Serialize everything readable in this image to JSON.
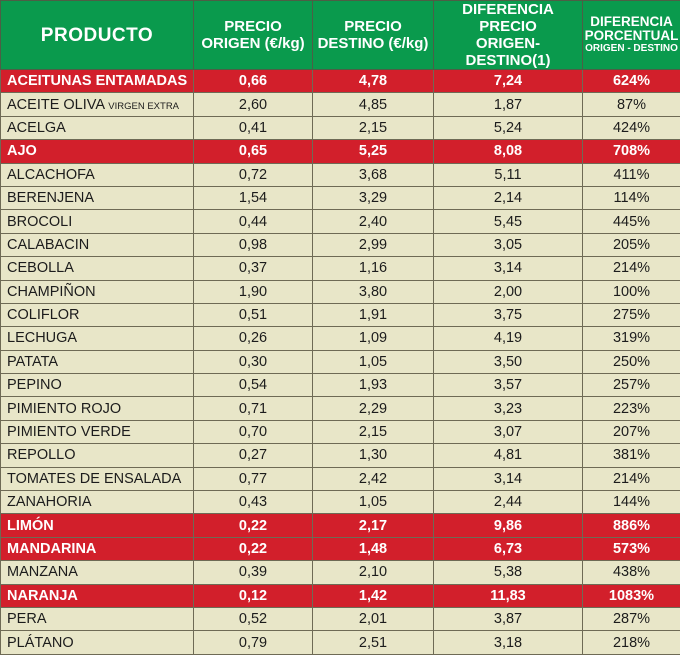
{
  "colors": {
    "header_bg": "#0a9a4d",
    "header_text": "#ffffff",
    "row_bg": "#e8e6c8",
    "highlight_bg": "#d21f2b",
    "highlight_text": "#ffffff",
    "border": "#6e6a55"
  },
  "table": {
    "headers": {
      "producto": "PRODUCTO",
      "precio_origen_l1": "PRECIO",
      "precio_origen_l2": "ORIGEN (€/kg)",
      "precio_destino_l1": "PRECIO",
      "precio_destino_l2": "DESTINO (€/kg)",
      "diferencia_l1": "DIFERENCIA PRECIO",
      "diferencia_l2": "ORIGEN-DESTINO(1)",
      "porcentual_l1": "DIFERENCIA",
      "porcentual_l2": "PORCENTUAL",
      "porcentual_l3": "ORIGEN - DESTINO"
    },
    "rows": [
      {
        "producto": "ACEITUNAS ENTAMADAS",
        "producto_extra": "",
        "origen": "0,66",
        "destino": "4,78",
        "diferencia": "7,24",
        "porcentaje": "624%",
        "highlight": true
      },
      {
        "producto": "ACEITE OLIVA ",
        "producto_extra": "VIRGEN EXTRA",
        "origen": "2,60",
        "destino": "4,85",
        "diferencia": "1,87",
        "porcentaje": "87%",
        "highlight": false
      },
      {
        "producto": "ACELGA",
        "producto_extra": "",
        "origen": "0,41",
        "destino": "2,15",
        "diferencia": "5,24",
        "porcentaje": "424%",
        "highlight": false
      },
      {
        "producto": "AJO",
        "producto_extra": "",
        "origen": "0,65",
        "destino": "5,25",
        "diferencia": "8,08",
        "porcentaje": "708%",
        "highlight": true
      },
      {
        "producto": "ALCACHOFA",
        "producto_extra": "",
        "origen": "0,72",
        "destino": "3,68",
        "diferencia": "5,11",
        "porcentaje": "411%",
        "highlight": false
      },
      {
        "producto": "BERENJENA",
        "producto_extra": "",
        "origen": "1,54",
        "destino": "3,29",
        "diferencia": "2,14",
        "porcentaje": "114%",
        "highlight": false
      },
      {
        "producto": "BROCOLI",
        "producto_extra": "",
        "origen": "0,44",
        "destino": "2,40",
        "diferencia": "5,45",
        "porcentaje": "445%",
        "highlight": false
      },
      {
        "producto": "CALABACIN",
        "producto_extra": "",
        "origen": "0,98",
        "destino": "2,99",
        "diferencia": "3,05",
        "porcentaje": "205%",
        "highlight": false
      },
      {
        "producto": "CEBOLLA",
        "producto_extra": "",
        "origen": "0,37",
        "destino": "1,16",
        "diferencia": "3,14",
        "porcentaje": "214%",
        "highlight": false
      },
      {
        "producto": "CHAMPIÑON",
        "producto_extra": "",
        "origen": "1,90",
        "destino": "3,80",
        "diferencia": "2,00",
        "porcentaje": "100%",
        "highlight": false
      },
      {
        "producto": "COLIFLOR",
        "producto_extra": "",
        "origen": "0,51",
        "destino": "1,91",
        "diferencia": "3,75",
        "porcentaje": "275%",
        "highlight": false
      },
      {
        "producto": "LECHUGA",
        "producto_extra": "",
        "origen": "0,26",
        "destino": "1,09",
        "diferencia": "4,19",
        "porcentaje": "319%",
        "highlight": false
      },
      {
        "producto": "PATATA",
        "producto_extra": "",
        "origen": "0,30",
        "destino": "1,05",
        "diferencia": "3,50",
        "porcentaje": "250%",
        "highlight": false
      },
      {
        "producto": "PEPINO",
        "producto_extra": "",
        "origen": "0,54",
        "destino": "1,93",
        "diferencia": "3,57",
        "porcentaje": "257%",
        "highlight": false
      },
      {
        "producto": "PIMIENTO ROJO",
        "producto_extra": "",
        "origen": "0,71",
        "destino": "2,29",
        "diferencia": "3,23",
        "porcentaje": "223%",
        "highlight": false
      },
      {
        "producto": "PIMIENTO VERDE",
        "producto_extra": "",
        "origen": "0,70",
        "destino": "2,15",
        "diferencia": "3,07",
        "porcentaje": "207%",
        "highlight": false
      },
      {
        "producto": "REPOLLO",
        "producto_extra": "",
        "origen": "0,27",
        "destino": "1,30",
        "diferencia": "4,81",
        "porcentaje": "381%",
        "highlight": false
      },
      {
        "producto": "TOMATES DE ENSALADA",
        "producto_extra": "",
        "origen": "0,77",
        "destino": "2,42",
        "diferencia": "3,14",
        "porcentaje": "214%",
        "highlight": false
      },
      {
        "producto": "ZANAHORIA",
        "producto_extra": "",
        "origen": "0,43",
        "destino": "1,05",
        "diferencia": "2,44",
        "porcentaje": "144%",
        "highlight": false
      },
      {
        "producto": "LIMÓN",
        "producto_extra": "",
        "origen": "0,22",
        "destino": "2,17",
        "diferencia": "9,86",
        "porcentaje": "886%",
        "highlight": true
      },
      {
        "producto": "MANDARINA",
        "producto_extra": "",
        "origen": "0,22",
        "destino": "1,48",
        "diferencia": "6,73",
        "porcentaje": "573%",
        "highlight": true
      },
      {
        "producto": "MANZANA",
        "producto_extra": "",
        "origen": "0,39",
        "destino": "2,10",
        "diferencia": "5,38",
        "porcentaje": "438%",
        "highlight": false
      },
      {
        "producto": "NARANJA",
        "producto_extra": "",
        "origen": "0,12",
        "destino": "1,42",
        "diferencia": "11,83",
        "porcentaje": "1083%",
        "highlight": true
      },
      {
        "producto": "PERA",
        "producto_extra": "",
        "origen": "0,52",
        "destino": "2,01",
        "diferencia": "3,87",
        "porcentaje": "287%",
        "highlight": false
      },
      {
        "producto": "PLÁTANO",
        "producto_extra": "",
        "origen": "0,79",
        "destino": "2,51",
        "diferencia": "3,18",
        "porcentaje": "218%",
        "highlight": false
      }
    ]
  }
}
